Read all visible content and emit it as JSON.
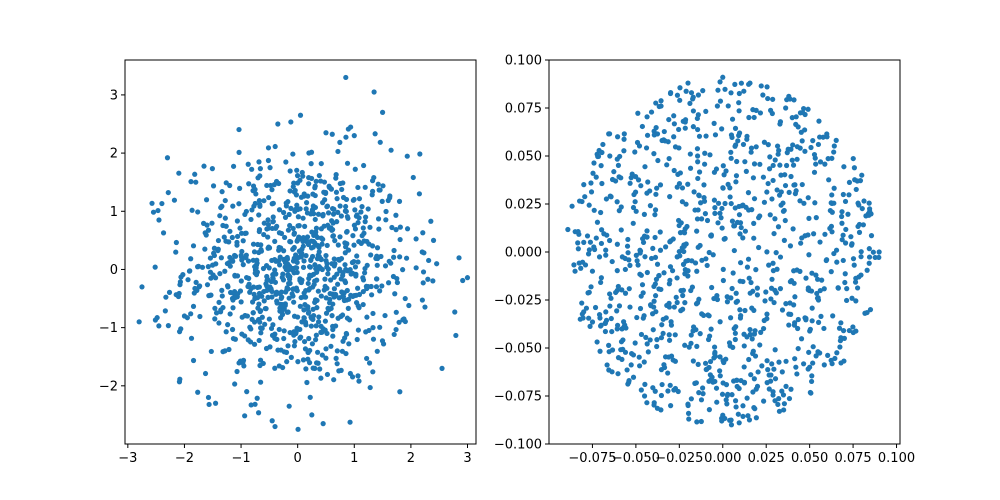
{
  "chart_data": [
    {
      "type": "scatter",
      "title": "",
      "xlabel": "",
      "ylabel": "",
      "xlim": [
        -3.05,
        3.15
      ],
      "ylim": [
        -3.0,
        3.6
      ],
      "xticks": [
        "−3",
        "−2",
        "−1",
        "0",
        "1",
        "2",
        "3"
      ],
      "yticks": [
        "−2",
        "−1",
        "0",
        "1",
        "2",
        "3"
      ],
      "xtick_values": [
        -3,
        -2,
        -1,
        0,
        1,
        2,
        3
      ],
      "ytick_values": [
        -2,
        -1,
        0,
        1,
        2,
        3
      ],
      "grid": false,
      "color": "#1f77b4",
      "distribution": "Gaussian cloud (≈1000 points, σ≈1) centered at origin",
      "n_points": 1000,
      "series": [
        {
          "x": [
            0.85,
            1.35,
            1.5,
            0.05,
            -0.35,
            -2.3,
            -2.45,
            -2.75,
            -2.8,
            2.85,
            2.55,
            2.4,
            -1.45,
            -0.45,
            -0.4,
            0.25,
            0.45,
            -0.15,
            1.65,
            1.0,
            0.5,
            -0.9,
            2.15,
            2.2,
            -1.8,
            -0.2,
            0.3,
            -0.6,
            1.2,
            -1.1,
            0.7,
            -0.05,
            1.9,
            -2.0,
            0.1,
            -0.3
          ],
          "y": [
            3.3,
            3.05,
            2.7,
            2.65,
            2.5,
            1.92,
            0.85,
            -0.3,
            -0.9,
            0.2,
            -1.7,
            0.5,
            -2.3,
            -2.6,
            -2.7,
            -2.5,
            -2.65,
            -2.35,
            2.05,
            2.3,
            2.35,
            -2.1,
            1.3,
            0.3,
            1.5,
            0.1,
            -0.2,
            0.6,
            0.9,
            -1.2,
            -1.4,
            1.0,
            -0.5,
            -0.8,
            0.4,
            -0.6
          ]
        }
      ]
    },
    {
      "type": "scatter",
      "title": "",
      "xlabel": "",
      "ylabel": "",
      "xlim": [
        -0.1,
        0.102
      ],
      "ylim": [
        -0.1,
        0.1
      ],
      "xticks": [
        "−0.075",
        "−0.050",
        "−0.025",
        "0.000",
        "0.025",
        "0.050",
        "0.075",
        "0.100"
      ],
      "yticks": [
        "−0.100",
        "−0.075",
        "−0.050",
        "−0.025",
        "0.000",
        "0.025",
        "0.050",
        "0.075",
        "0.100"
      ],
      "xtick_values": [
        -0.075,
        -0.05,
        -0.025,
        0,
        0.025,
        0.05,
        0.075,
        0.1
      ],
      "ytick_values": [
        -0.1,
        -0.075,
        -0.05,
        -0.025,
        0,
        0.025,
        0.05,
        0.075,
        0.1
      ],
      "grid": false,
      "color": "#1f77b4",
      "distribution": "Uniform disk (≈1000 points, radius≈0.09) centered at origin",
      "n_points": 1000,
      "series": [
        {
          "x": [
            -0.085,
            -0.08,
            -0.082,
            -0.075,
            -0.065,
            -0.07,
            0.0,
            0.005,
            -0.02,
            -0.03,
            0.09,
            0.085,
            0.08,
            -0.03,
            0.0,
            0.02,
            0.04,
            0.06,
            -0.045,
            -0.06,
            0.05,
            0.07,
            -0.01,
            0.03
          ],
          "y": [
            -0.01,
            0.005,
            -0.035,
            -0.01,
            0.05,
            0.045,
            0.091,
            -0.09,
            0.088,
            -0.08,
            0.0,
            -0.03,
            0.04,
            0.083,
            -0.085,
            -0.07,
            0.07,
            0.06,
            -0.075,
            -0.055,
            -0.06,
            -0.045,
            0.02,
            -0.02
          ]
        }
      ]
    }
  ]
}
